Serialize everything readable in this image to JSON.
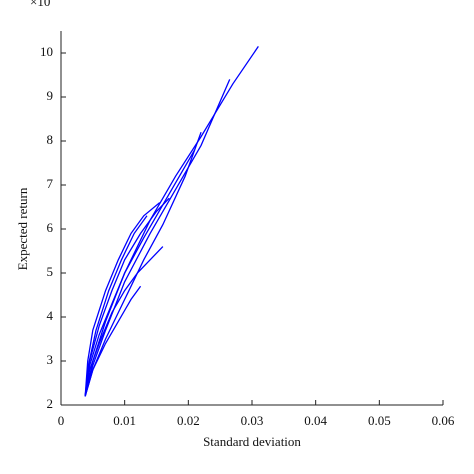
{
  "chart_data": {
    "type": "line",
    "x_label": "Standard deviation",
    "y_label": "Expected return",
    "y_multiplier": "×10",
    "xlim": [
      0,
      0.06
    ],
    "xticks": [
      0,
      0.01,
      0.02,
      0.03,
      0.04,
      0.05,
      0.06
    ],
    "ylim": [
      2,
      10.5
    ],
    "yticks": [
      2,
      3,
      4,
      5,
      6,
      7,
      8,
      9,
      10
    ],
    "series": [
      {
        "color": "#0000ff",
        "x": [
          0.0038,
          0.005,
          0.007,
          0.01,
          0.014,
          0.018,
          0.022,
          0.027,
          0.031
        ],
        "values": [
          2.2,
          3.0,
          3.9,
          5.0,
          6.2,
          7.2,
          8.1,
          9.3,
          10.15
        ]
      },
      {
        "color": "#0000ff",
        "x": [
          0.0038,
          0.005,
          0.007,
          0.01,
          0.014,
          0.018,
          0.022,
          0.0265
        ],
        "values": [
          2.2,
          2.9,
          3.7,
          4.8,
          5.9,
          6.9,
          7.9,
          9.4
        ]
      },
      {
        "color": "#0000ff",
        "x": [
          0.0038,
          0.0045,
          0.006,
          0.008,
          0.01,
          0.013,
          0.017,
          0.021
        ],
        "values": [
          2.2,
          2.9,
          3.6,
          4.3,
          5.0,
          5.8,
          6.8,
          7.8
        ]
      },
      {
        "color": "#0000ff",
        "x": [
          0.0038,
          0.005,
          0.007,
          0.01,
          0.013,
          0.016,
          0.0195,
          0.022
        ],
        "values": [
          2.2,
          2.8,
          3.5,
          4.4,
          5.3,
          6.1,
          7.2,
          8.2
        ]
      },
      {
        "color": "#0000ff",
        "x": [
          0.0038,
          0.0045,
          0.006,
          0.008,
          0.01,
          0.0125,
          0.015,
          0.017
        ],
        "values": [
          2.2,
          3.0,
          3.8,
          4.6,
          5.3,
          5.9,
          6.4,
          6.7
        ]
      },
      {
        "color": "#0000ff",
        "x": [
          0.0038,
          0.0042,
          0.005,
          0.007,
          0.009,
          0.011,
          0.013,
          0.0155
        ],
        "values": [
          2.2,
          3.0,
          3.7,
          4.6,
          5.3,
          5.9,
          6.3,
          6.6
        ]
      },
      {
        "color": "#0000ff",
        "x": [
          0.0038,
          0.0045,
          0.006,
          0.008,
          0.01,
          0.012,
          0.014,
          0.016
        ],
        "values": [
          2.2,
          2.8,
          3.4,
          4.1,
          4.6,
          5.0,
          5.3,
          5.6
        ]
      },
      {
        "color": "#0000ff",
        "x": [
          0.0038,
          0.005,
          0.007,
          0.009,
          0.011,
          0.0125
        ],
        "values": [
          2.2,
          2.8,
          3.4,
          3.9,
          4.4,
          4.7
        ]
      },
      {
        "color": "#0000ff",
        "x": [
          0.0038,
          0.0043,
          0.0055,
          0.0075,
          0.0095,
          0.0115,
          0.0135
        ],
        "values": [
          2.2,
          2.9,
          3.7,
          4.6,
          5.3,
          5.9,
          6.3
        ]
      }
    ]
  }
}
